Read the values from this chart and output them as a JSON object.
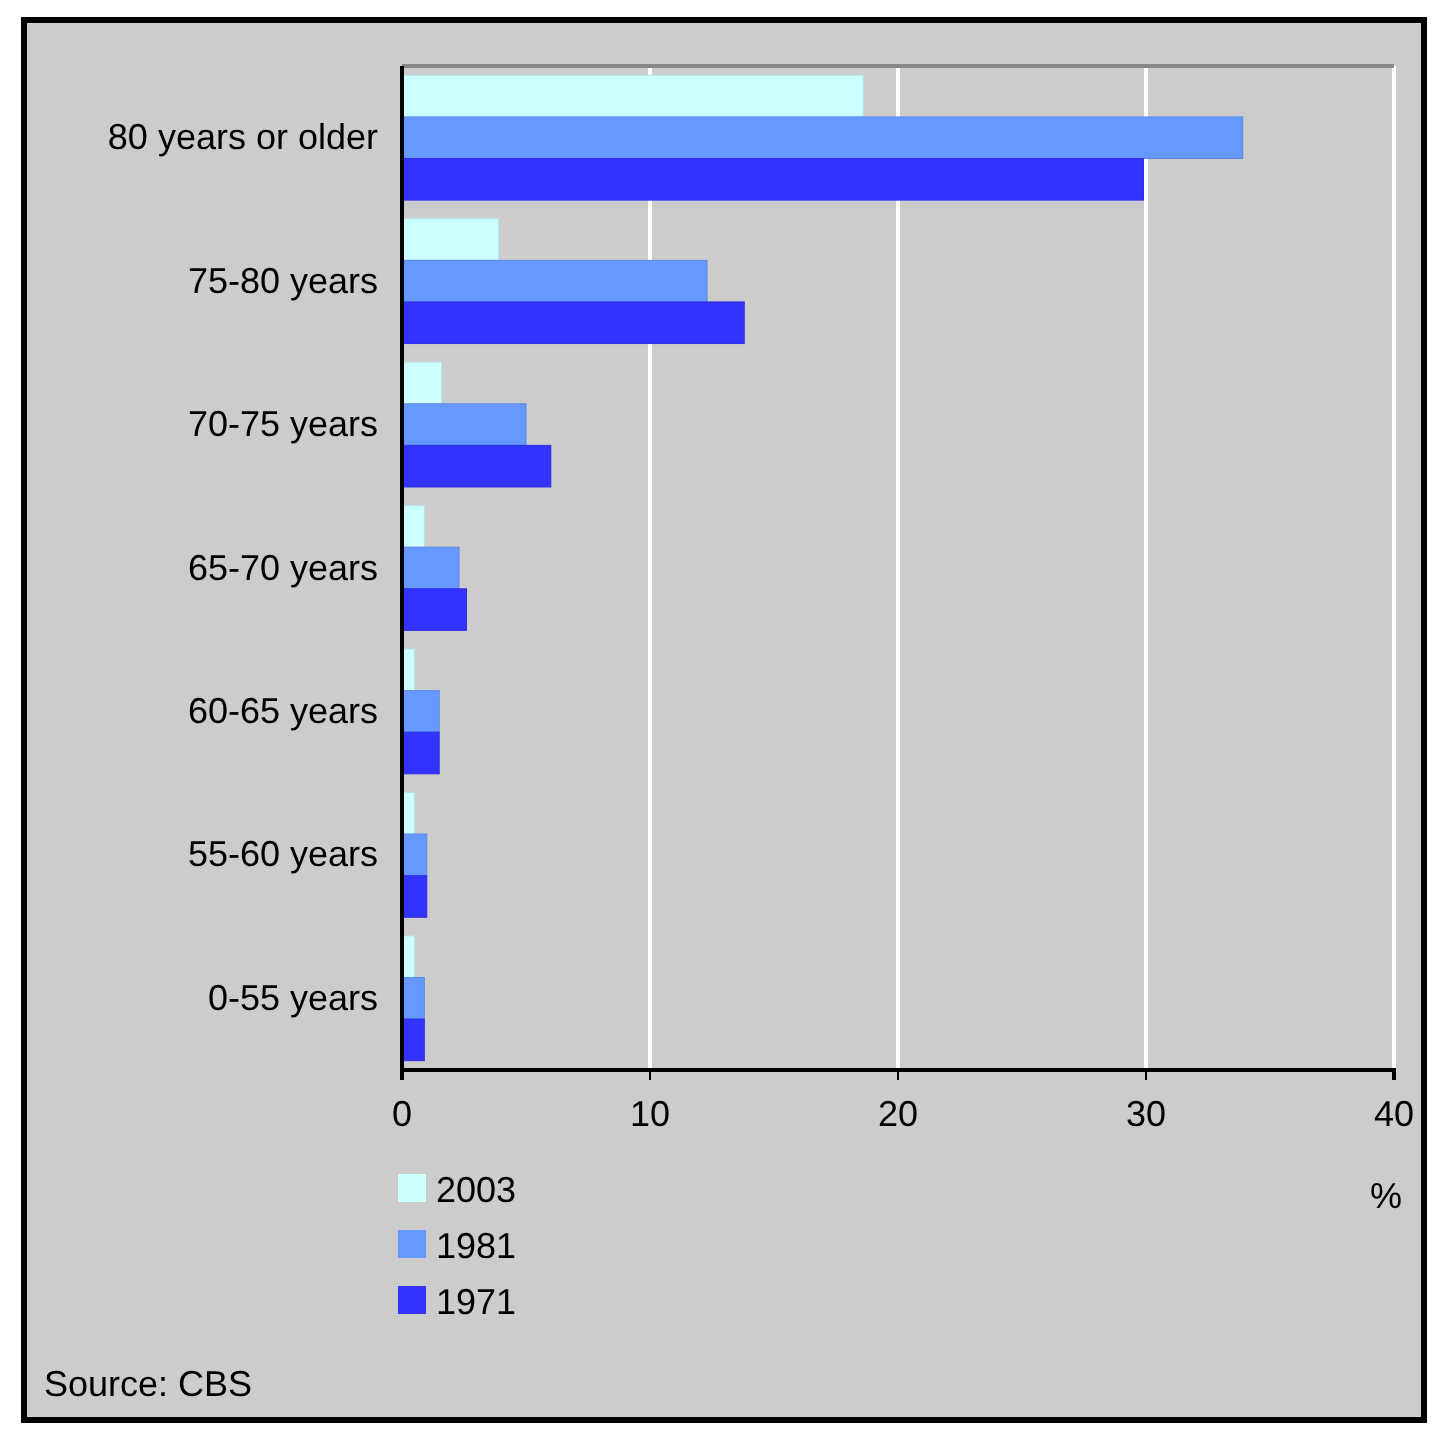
{
  "chart_data": {
    "type": "bar",
    "orientation": "horizontal",
    "xlabel": "%",
    "categories": [
      "80 years or older",
      "75-80 years",
      "70-75 years",
      "65-70 years",
      "60-65 years",
      "55-60 years",
      "0-55 years"
    ],
    "series": [
      {
        "name": "2003",
        "color": "#ccffff",
        "values": [
          18.6,
          3.9,
          1.6,
          0.9,
          0.5,
          0.5,
          0.5
        ]
      },
      {
        "name": "1981",
        "color": "#6699ff",
        "values": [
          33.9,
          12.3,
          5.0,
          2.3,
          1.5,
          1.0,
          0.9
        ]
      },
      {
        "name": "1971",
        "color": "#3333ff",
        "values": [
          29.9,
          13.8,
          6.0,
          2.6,
          1.5,
          1.0,
          0.9
        ]
      }
    ],
    "xlim": [
      0,
      40
    ],
    "xticks": [
      0,
      10,
      20,
      30,
      40
    ],
    "grid": "x",
    "legend": "bottom left",
    "annotations": [
      "Source: CBS"
    ]
  }
}
